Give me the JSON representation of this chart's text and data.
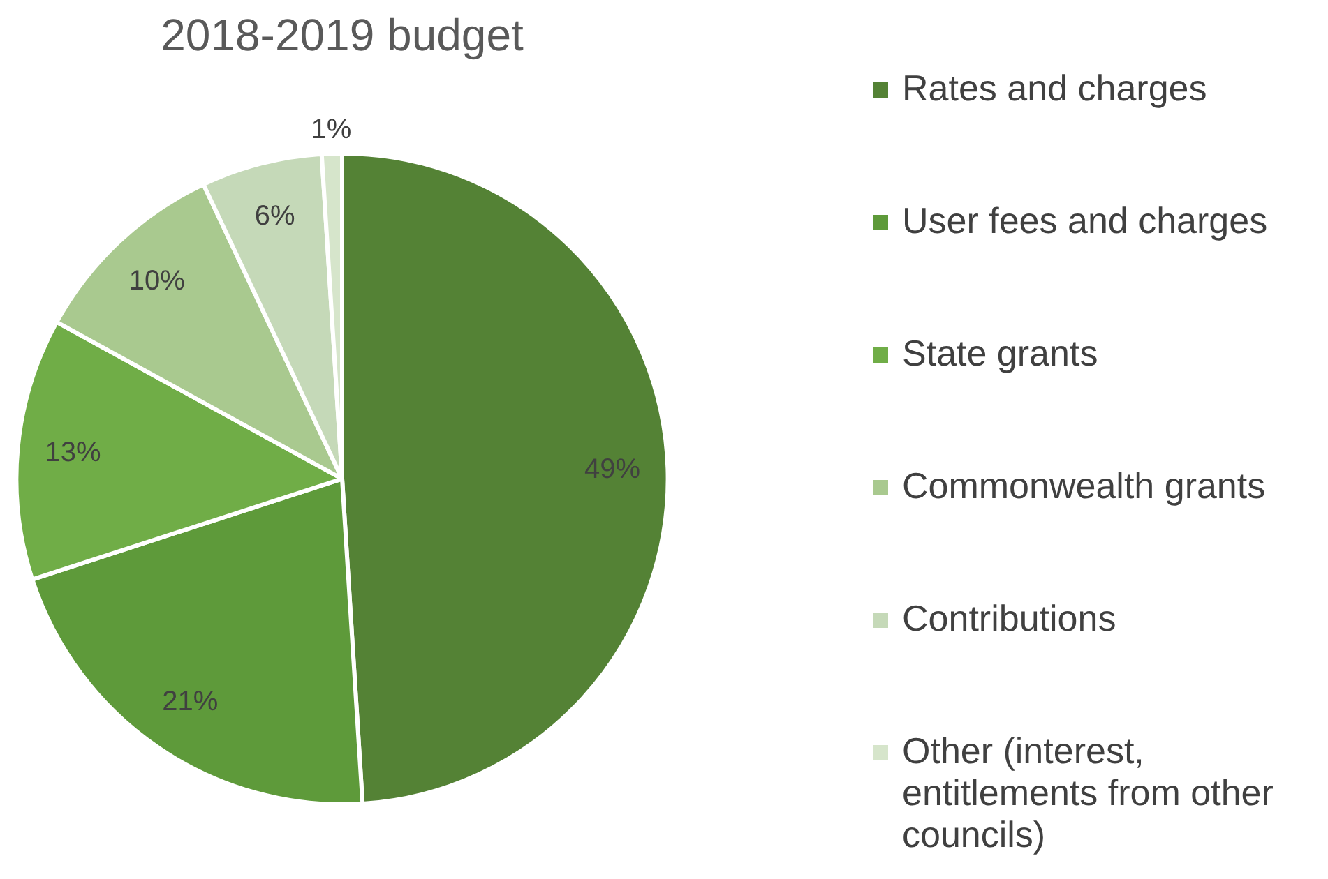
{
  "chart_data": {
    "type": "pie",
    "title": "2018-2019 budget",
    "categories": [
      "Rates and charges",
      "User fees and charges",
      "State grants",
      "Commonwealth grants",
      "Contributions",
      "Other (interest, entitlements from other councils)"
    ],
    "values": [
      49,
      21,
      13,
      10,
      6,
      1
    ],
    "colors": [
      "#548235",
      "#5e9a3a",
      "#70ad47",
      "#a9c98f",
      "#c5d9b8",
      "#d6e5cb"
    ],
    "value_labels": [
      "49%",
      "21%",
      "13%",
      "10%",
      "6%",
      "1%"
    ],
    "legend": "right"
  }
}
